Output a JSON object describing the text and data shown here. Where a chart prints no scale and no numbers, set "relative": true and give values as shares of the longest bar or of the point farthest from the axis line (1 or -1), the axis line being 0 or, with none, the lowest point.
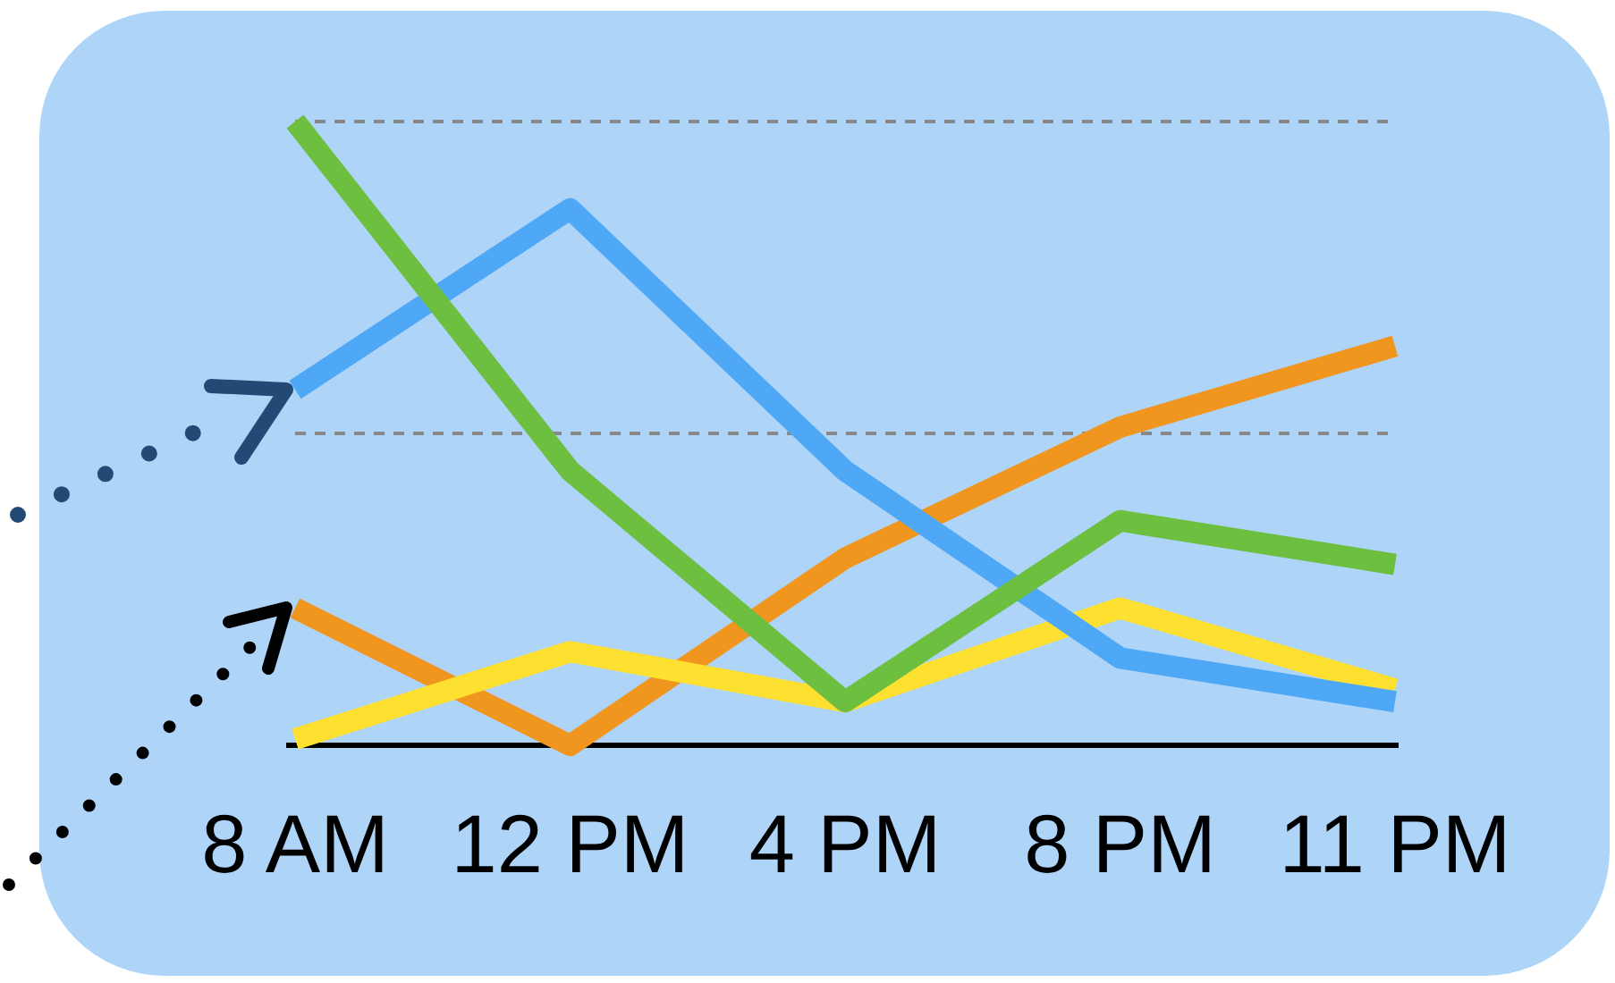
{
  "chart_data": {
    "type": "line",
    "relative": true,
    "categories": [
      "8 AM",
      "12 PM",
      "4 PM",
      "8 PM",
      "11 PM"
    ],
    "tick_labels": "x",
    "marker": "none",
    "line_style": "solid",
    "ref_lines": [
      {
        "axis": "y",
        "value": 0.5,
        "color": "#888888",
        "line_style": "dashed"
      },
      {
        "axis": "y",
        "value": 1,
        "color": "#888888",
        "line_style": "dashed"
      }
    ],
    "series": [
      {
        "color": "#f0961e",
        "values": [
          0.22,
          0,
          0.3,
          0.51,
          0.64
        ]
      },
      {
        "color": "#fde030",
        "values": [
          0.01,
          0.15,
          0.07,
          0.22,
          0.09
        ]
      },
      {
        "color": "#4fa8f5",
        "values": [
          0.57,
          0.86,
          0.44,
          0.14,
          0.07
        ]
      },
      {
        "color": "#6dbf3f",
        "values": [
          1,
          0.44,
          0.07,
          0.36,
          0.29
        ]
      }
    ]
  }
}
